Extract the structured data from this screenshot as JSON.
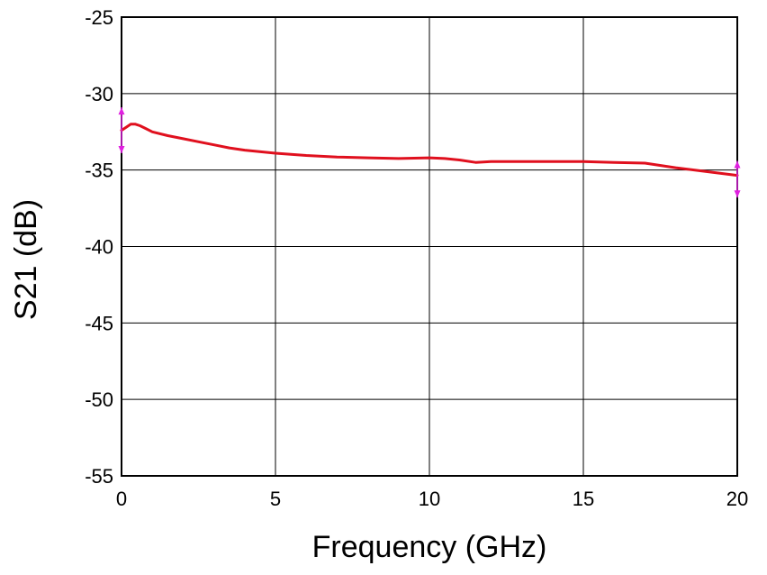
{
  "chart_data": {
    "type": "line",
    "title": "",
    "xlabel": "Frequency (GHz)",
    "ylabel": "S21 (dB)",
    "xlim": [
      0,
      20
    ],
    "ylim": [
      -55,
      -25
    ],
    "xticks": [
      0,
      5,
      10,
      15,
      20
    ],
    "yticks": [
      -55,
      -50,
      -45,
      -40,
      -35,
      -30,
      -25
    ],
    "xtick_labels": [
      "0",
      "5",
      "10",
      "15",
      "20"
    ],
    "ytick_labels": [
      "-55",
      "-50",
      "-45",
      "-40",
      "-35",
      "-30",
      "-25"
    ],
    "grid": true,
    "series": [
      {
        "color": "#e0101e",
        "x": [
          0,
          0.15,
          0.3,
          0.45,
          0.6,
          0.8,
          1.0,
          1.5,
          2.0,
          2.5,
          3.0,
          3.5,
          4.0,
          5.0,
          6.0,
          7.0,
          8.0,
          9.0,
          10.0,
          10.5,
          11.0,
          11.5,
          12.0,
          13.0,
          14.0,
          15.0,
          16.0,
          17.0,
          18.0,
          19.0,
          20.0
        ],
        "y": [
          -32.4,
          -32.2,
          -32.0,
          -32.0,
          -32.1,
          -32.3,
          -32.5,
          -32.75,
          -32.95,
          -33.15,
          -33.35,
          -33.55,
          -33.7,
          -33.9,
          -34.05,
          -34.15,
          -34.2,
          -34.25,
          -34.2,
          -34.25,
          -34.35,
          -34.5,
          -34.45,
          -34.45,
          -34.45,
          -34.45,
          -34.5,
          -34.55,
          -34.85,
          -35.1,
          -35.35
        ]
      }
    ],
    "error_markers": [
      {
        "x": 0,
        "y": -32.4,
        "low": -33.9,
        "high": -30.9,
        "color": "#e020e0"
      },
      {
        "x": 20,
        "y": -35.35,
        "low": -36.8,
        "high": -34.4,
        "color": "#e020e0"
      }
    ]
  }
}
